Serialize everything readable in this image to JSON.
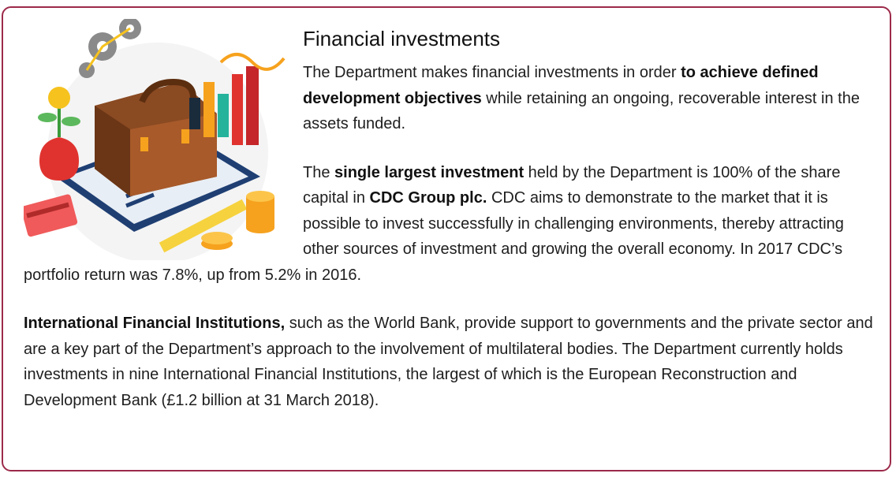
{
  "title": "Financial investments",
  "paragraphs": [
    [
      {
        "text": "The Department makes financial investments in order ",
        "bold": false
      },
      {
        "text": "to achieve defined development objectives",
        "bold": true
      },
      {
        "text": " while retaining an ongoing, recoverable interest in the assets funded.",
        "bold": false
      }
    ],
    [
      {
        "text": "The ",
        "bold": false
      },
      {
        "text": "single largest investment",
        "bold": true
      },
      {
        "text": " held by the Department is 100% of the share capital in ",
        "bold": false
      },
      {
        "text": "CDC Group plc.",
        "bold": true
      },
      {
        "text": " CDC aims to demonstrate to the market that it is possible to invest successfully in challenging environments, thereby attracting other sources of investment and growing the overall economy. In 2017 CDC’s portfolio return was 7.8%, up from 5.2% in 2016.",
        "bold": false
      }
    ],
    [
      {
        "text": "International Financial Institutions,",
        "bold": true
      },
      {
        "text": " such as the World Bank, provide support to governments and the private sector and are a key part of the Department’s approach to the involvement of multilateral bodies. The Department currently holds investments in nine International Financial Institutions, the largest of which is the European Reconstruction and Development Bank (£1.2 billion at 31 March 2018).",
        "bold": false
      }
    ]
  ]
}
